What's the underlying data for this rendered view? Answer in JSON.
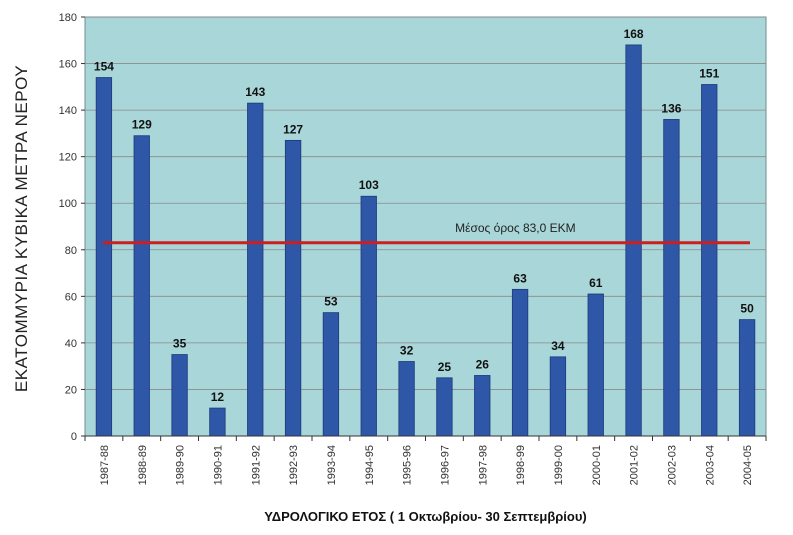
{
  "chart_data": {
    "type": "bar",
    "title": "",
    "xlabel": "ΥΔΡΟΛΟΓΙΚΟ ΕΤΟΣ ( 1 Οκτωβρίου- 30 Σεπτεμβρίου)",
    "ylabel": "ΕΚΑΤΟΜΜΥΡΙΑ ΚΥΒΙΚΑ ΜΕΤΡΑ ΝΕΡΟΥ",
    "ylim": [
      0,
      180
    ],
    "yticks": [
      0,
      20,
      40,
      60,
      80,
      100,
      120,
      140,
      160,
      180
    ],
    "categories": [
      "1987-88",
      "1988-89",
      "1989-90",
      "1990-91",
      "1991-92",
      "1992-93",
      "1993-94",
      "1994-95",
      "1995-96",
      "1996-97",
      "1997-98",
      "1998-99",
      "1999-00",
      "2000-01",
      "2001-02",
      "2002-03",
      "2003-04",
      "2004-05"
    ],
    "values": [
      154,
      129,
      35,
      12,
      143,
      127,
      53,
      103,
      32,
      25,
      26,
      63,
      34,
      61,
      168,
      136,
      151,
      50
    ],
    "data_labels": [
      "154",
      "129",
      "35",
      "12",
      "143",
      "127",
      "53",
      "103",
      "32",
      "25",
      "26",
      "63",
      "34",
      "61",
      "168",
      "136",
      "151",
      "50"
    ],
    "average": {
      "value": 83.0,
      "label": "Μέσος όρος 83,0 ΕΚΜ",
      "color": "#cc1f1f"
    },
    "colors": {
      "plot_bg": "#a9d6d9",
      "bar": "#2f57a8",
      "bar_edge": "#1c3a7a",
      "grid": "#8a8a8a"
    },
    "grid": true
  }
}
